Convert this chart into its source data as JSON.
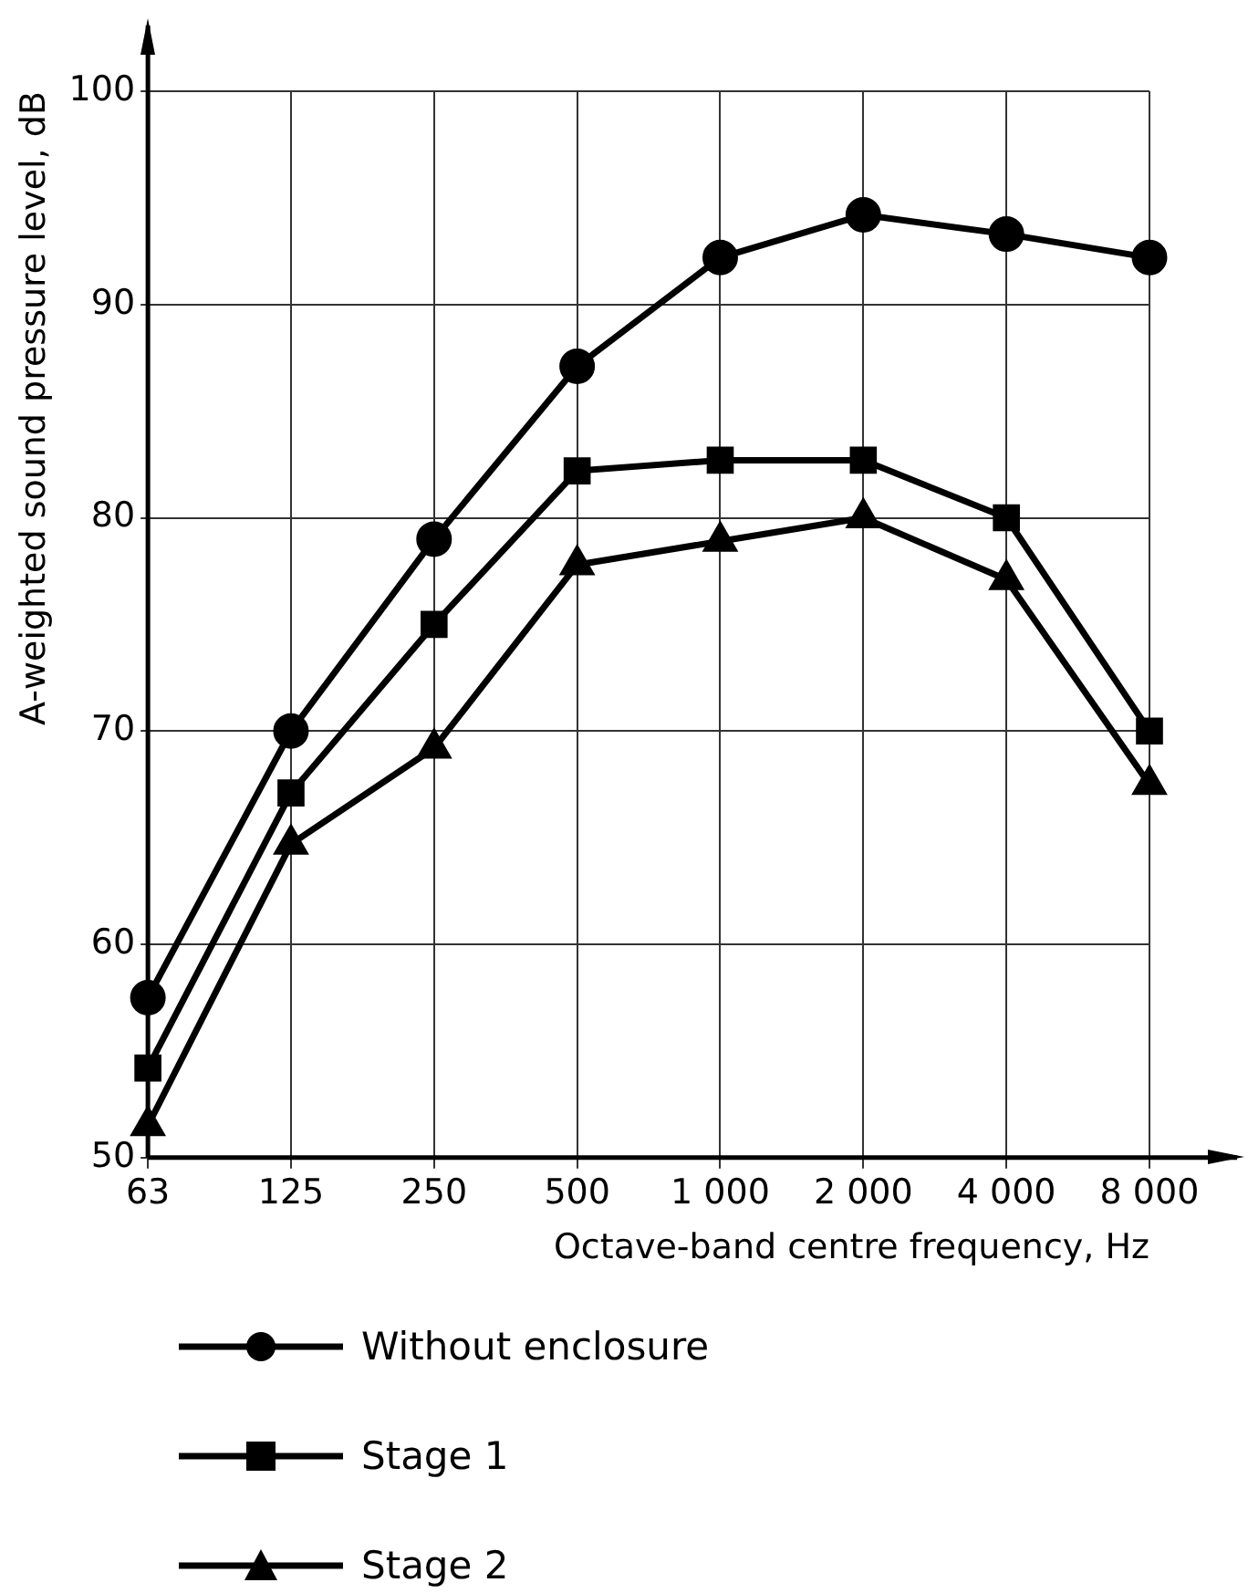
{
  "chart_data": {
    "type": "line",
    "xlabel": "Octave-band centre frequency, Hz",
    "ylabel": "A-weighted sound pressure level, dB",
    "categories": [
      "63",
      "125",
      "250",
      "500",
      "1 000",
      "2 000",
      "4 000",
      "8 000"
    ],
    "series": [
      {
        "name": "Without enclosure",
        "color": "#000000",
        "marker": "circle",
        "values": [
          57.5,
          70.0,
          79.0,
          87.1,
          92.2,
          94.2,
          93.3,
          92.2
        ]
      },
      {
        "name": "Stage 1",
        "color": "#000000",
        "marker": "square",
        "values": [
          54.2,
          67.1,
          75.0,
          82.2,
          82.7,
          82.7,
          80.0,
          70.0
        ]
      },
      {
        "name": "Stage 2",
        "color": "#000000",
        "marker": "triangle",
        "values": [
          51.5,
          64.7,
          69.2,
          77.8,
          78.9,
          80.0,
          77.1,
          67.5
        ]
      }
    ],
    "ylim": [
      50,
      100
    ],
    "yticks": [
      50,
      60,
      70,
      80,
      90,
      100
    ],
    "grid": true,
    "legend": "bottom",
    "line_style": "solid"
  }
}
